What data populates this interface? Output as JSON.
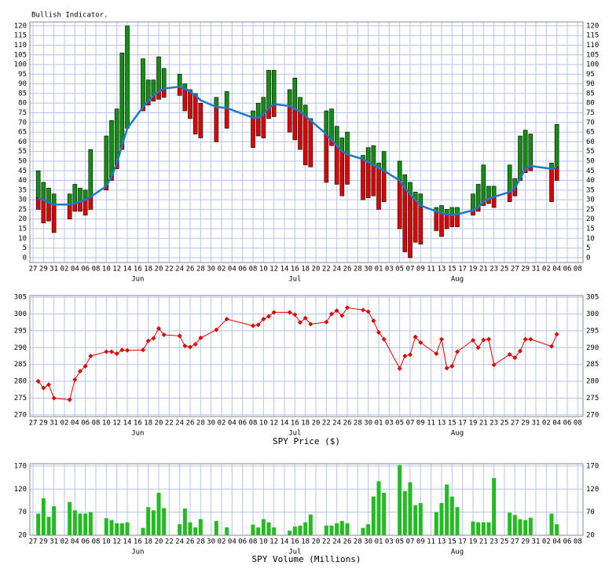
{
  "chart_data": [
    {
      "type": "bullish",
      "title": "Bullish Indicator.",
      "x": [
        1,
        2,
        3,
        4,
        7,
        8,
        9,
        10,
        11,
        14,
        15,
        16,
        17,
        18,
        21,
        22,
        23,
        24,
        25,
        28,
        29,
        30,
        31,
        32,
        35,
        37,
        42,
        43,
        44,
        45,
        46,
        49,
        50,
        51,
        52,
        53,
        56,
        57,
        58,
        59,
        60,
        63,
        64,
        65,
        66,
        67,
        70,
        71,
        72,
        73,
        74,
        77,
        78,
        79,
        80,
        81,
        84,
        85,
        86,
        87,
        88,
        91,
        92,
        93,
        94,
        95,
        99,
        100
      ],
      "low": [
        25,
        18,
        19,
        13,
        20,
        24,
        24,
        22,
        25,
        35,
        40,
        46,
        56,
        67,
        76,
        79,
        81,
        82,
        83,
        84,
        76,
        72,
        64,
        62,
        60,
        67,
        57,
        63,
        62,
        72,
        73,
        65,
        61,
        56,
        48,
        47,
        39,
        58,
        38,
        32,
        38,
        30,
        31,
        32,
        25,
        29,
        15,
        3,
        0,
        8,
        7,
        14,
        11,
        15,
        16,
        16,
        22,
        24,
        27,
        28,
        26,
        29,
        32,
        40,
        44,
        45,
        29,
        40
      ],
      "high": [
        45,
        39,
        36,
        33,
        33,
        38,
        36,
        35,
        56,
        63,
        71,
        77,
        106,
        120,
        103,
        92,
        92,
        104,
        98,
        95,
        90,
        87,
        85,
        80,
        83,
        86,
        76,
        80,
        83,
        97,
        97,
        87,
        93,
        83,
        79,
        72,
        76,
        77,
        68,
        62,
        65,
        53,
        57,
        58,
        49,
        55,
        50,
        43,
        39,
        34,
        33,
        26,
        27,
        25,
        26,
        26,
        33,
        38,
        48,
        37,
        37,
        48,
        41,
        63,
        66,
        64,
        49,
        69
      ],
      "average": [
        31,
        30,
        28.5,
        27.5,
        27.5,
        28,
        29,
        30,
        31.5,
        37,
        42,
        49,
        58,
        67,
        78,
        81,
        84,
        86,
        87.5,
        88.5,
        87.5,
        86,
        84,
        81.5,
        78,
        77.5,
        72.5,
        72.5,
        74,
        77.5,
        79.5,
        78.5,
        77,
        75.5,
        73.5,
        71,
        64,
        61,
        58,
        55,
        53.5,
        51,
        49.5,
        48,
        46.5,
        45,
        40,
        36,
        33,
        30,
        27,
        24,
        23,
        22.5,
        22,
        22.5,
        24.5,
        26,
        29,
        30.5,
        31.5,
        34,
        36,
        41,
        46,
        47.5,
        46,
        47
      ],
      "up_color": "#109010",
      "down_color": "#e00000",
      "line_color": "#1f78c8",
      "xlim": [
        -0.6,
        105
      ],
      "xticks": [
        {
          "value": 0,
          "label": "27"
        },
        {
          "value": 2,
          "label": "29"
        },
        {
          "value": 4,
          "label": "31"
        },
        {
          "value": 6,
          "label": "02"
        },
        {
          "value": 8,
          "label": "04"
        },
        {
          "value": 10,
          "label": "06"
        },
        {
          "value": 12,
          "label": "08"
        },
        {
          "value": 14,
          "label": "10"
        },
        {
          "value": 16,
          "label": "12"
        },
        {
          "value": 18,
          "label": "14"
        },
        {
          "value": 20,
          "label": "16"
        },
        {
          "value": 22,
          "label": "18"
        },
        {
          "value": 24,
          "label": "20"
        },
        {
          "value": 26,
          "label": "22"
        },
        {
          "value": 28,
          "label": "24"
        },
        {
          "value": 30,
          "label": "26"
        },
        {
          "value": 32,
          "label": "28"
        },
        {
          "value": 34,
          "label": "30"
        },
        {
          "value": 36,
          "label": "02"
        },
        {
          "value": 38,
          "label": "04"
        },
        {
          "value": 40,
          "label": "06"
        },
        {
          "value": 42,
          "label": "08"
        },
        {
          "value": 44,
          "label": "10"
        },
        {
          "value": 46,
          "label": "12"
        },
        {
          "value": 48,
          "label": "14"
        },
        {
          "value": 50,
          "label": "16"
        },
        {
          "value": 52,
          "label": "18"
        },
        {
          "value": 54,
          "label": "20"
        },
        {
          "value": 56,
          "label": "22"
        },
        {
          "value": 58,
          "label": "24"
        },
        {
          "value": 60,
          "label": "26"
        },
        {
          "value": 62,
          "label": "28"
        },
        {
          "value": 64,
          "label": "30"
        },
        {
          "value": 66,
          "label": "01"
        },
        {
          "value": 68,
          "label": "03"
        },
        {
          "value": 70,
          "label": "05"
        },
        {
          "value": 72,
          "label": "07"
        },
        {
          "value": 74,
          "label": "09"
        },
        {
          "value": 76,
          "label": "11"
        },
        {
          "value": 78,
          "label": "13"
        },
        {
          "value": 80,
          "label": "15"
        },
        {
          "value": 82,
          "label": "17"
        },
        {
          "value": 84,
          "label": "19"
        },
        {
          "value": 86,
          "label": "21"
        },
        {
          "value": 88,
          "label": "23"
        },
        {
          "value": 90,
          "label": "25"
        },
        {
          "value": 92,
          "label": "27"
        },
        {
          "value": 94,
          "label": "29"
        },
        {
          "value": 96,
          "label": "31"
        },
        {
          "value": 98,
          "label": "02"
        },
        {
          "value": 100,
          "label": "04"
        },
        {
          "value": 102,
          "label": "06"
        },
        {
          "value": 104,
          "label": "08"
        }
      ],
      "months": [
        {
          "value": 20,
          "label": "Jun"
        },
        {
          "value": 50,
          "label": "Jul"
        },
        {
          "value": 81,
          "label": "Aug"
        }
      ],
      "ylim": [
        -2.5,
        122
      ],
      "yticks": [
        0,
        5,
        10,
        15,
        20,
        25,
        30,
        35,
        40,
        45,
        50,
        55,
        60,
        65,
        70,
        75,
        80,
        85,
        90,
        95,
        100,
        105,
        110,
        115,
        120
      ],
      "grid": true
    },
    {
      "type": "line",
      "title": "SPY Price ($)",
      "x": [
        1,
        2,
        3,
        4,
        7,
        8,
        9,
        10,
        11,
        14,
        15,
        16,
        17,
        18,
        21,
        22,
        23,
        24,
        25,
        28,
        29,
        30,
        31,
        32,
        35,
        37,
        42,
        43,
        44,
        45,
        46,
        49,
        50,
        51,
        52,
        53,
        56,
        57,
        58,
        59,
        60,
        63,
        64,
        65,
        66,
        67,
        70,
        71,
        72,
        73,
        74,
        77,
        78,
        79,
        80,
        81,
        84,
        85,
        86,
        87,
        88,
        91,
        92,
        93,
        94,
        95,
        99,
        100
      ],
      "values": [
        280,
        278,
        279,
        275,
        274.5,
        280.5,
        283,
        284.5,
        287.5,
        288.8,
        288.8,
        288.2,
        289.3,
        289.2,
        289.3,
        292,
        292.8,
        295.7,
        293.8,
        293.5,
        290.5,
        290.2,
        291,
        292.9,
        295.3,
        298.5,
        296.5,
        296.8,
        298.5,
        299.3,
        300.5,
        300.5,
        299.8,
        297.5,
        298.8,
        297,
        297.6,
        300,
        301,
        299.5,
        301.9,
        301.2,
        300.7,
        298,
        294.5,
        292.5,
        283.8,
        287.5,
        287.9,
        293.2,
        291.5,
        288.2,
        292.5,
        283.9,
        284.5,
        288.8,
        292.2,
        290,
        292.3,
        292.5,
        284.9,
        288,
        287,
        289,
        292.5,
        292.5,
        290.4,
        294
      ],
      "color": "#e00000",
      "xlim": [
        -0.6,
        105
      ],
      "xticks": [
        {
          "value": 0,
          "label": "27"
        },
        {
          "value": 2,
          "label": "29"
        },
        {
          "value": 4,
          "label": "31"
        },
        {
          "value": 6,
          "label": "02"
        },
        {
          "value": 8,
          "label": "04"
        },
        {
          "value": 10,
          "label": "06"
        },
        {
          "value": 12,
          "label": "08"
        },
        {
          "value": 14,
          "label": "10"
        },
        {
          "value": 16,
          "label": "12"
        },
        {
          "value": 18,
          "label": "14"
        },
        {
          "value": 20,
          "label": "16"
        },
        {
          "value": 22,
          "label": "18"
        },
        {
          "value": 24,
          "label": "20"
        },
        {
          "value": 26,
          "label": "22"
        },
        {
          "value": 28,
          "label": "24"
        },
        {
          "value": 30,
          "label": "26"
        },
        {
          "value": 32,
          "label": "28"
        },
        {
          "value": 34,
          "label": "30"
        },
        {
          "value": 36,
          "label": "02"
        },
        {
          "value": 38,
          "label": "04"
        },
        {
          "value": 40,
          "label": "06"
        },
        {
          "value": 42,
          "label": "08"
        },
        {
          "value": 44,
          "label": "10"
        },
        {
          "value": 46,
          "label": "12"
        },
        {
          "value": 48,
          "label": "14"
        },
        {
          "value": 50,
          "label": "16"
        },
        {
          "value": 52,
          "label": "18"
        },
        {
          "value": 54,
          "label": "20"
        },
        {
          "value": 56,
          "label": "22"
        },
        {
          "value": 58,
          "label": "24"
        },
        {
          "value": 60,
          "label": "26"
        },
        {
          "value": 62,
          "label": "28"
        },
        {
          "value": 64,
          "label": "30"
        },
        {
          "value": 66,
          "label": "01"
        },
        {
          "value": 68,
          "label": "03"
        },
        {
          "value": 70,
          "label": "05"
        },
        {
          "value": 72,
          "label": "07"
        },
        {
          "value": 74,
          "label": "09"
        },
        {
          "value": 76,
          "label": "11"
        },
        {
          "value": 78,
          "label": "13"
        },
        {
          "value": 80,
          "label": "15"
        },
        {
          "value": 82,
          "label": "17"
        },
        {
          "value": 84,
          "label": "19"
        },
        {
          "value": 86,
          "label": "21"
        },
        {
          "value": 88,
          "label": "23"
        },
        {
          "value": 90,
          "label": "25"
        },
        {
          "value": 92,
          "label": "27"
        },
        {
          "value": 94,
          "label": "29"
        },
        {
          "value": 96,
          "label": "31"
        },
        {
          "value": 98,
          "label": "02"
        },
        {
          "value": 100,
          "label": "04"
        },
        {
          "value": 102,
          "label": "06"
        },
        {
          "value": 104,
          "label": "08"
        }
      ],
      "months": [
        {
          "value": 20,
          "label": "Jun"
        },
        {
          "value": 50,
          "label": "Jul"
        },
        {
          "value": 81,
          "label": "Aug"
        }
      ],
      "ylim": [
        269.5,
        305.5
      ],
      "yticks": [
        270,
        275,
        280,
        285,
        290,
        295,
        300,
        305
      ],
      "grid": true
    },
    {
      "type": "bar",
      "title": "SPY Volume (Millions)",
      "x": [
        1,
        2,
        3,
        4,
        7,
        8,
        9,
        10,
        11,
        14,
        15,
        16,
        17,
        18,
        21,
        22,
        23,
        24,
        25,
        28,
        29,
        30,
        31,
        32,
        35,
        37,
        42,
        43,
        44,
        45,
        46,
        49,
        50,
        51,
        52,
        53,
        56,
        57,
        58,
        59,
        60,
        63,
        64,
        65,
        66,
        67,
        70,
        71,
        72,
        73,
        74,
        77,
        78,
        79,
        80,
        81,
        84,
        85,
        86,
        87,
        88,
        91,
        92,
        93,
        94,
        95,
        99,
        100
      ],
      "values": [
        67,
        100,
        60,
        83,
        92,
        74,
        67,
        67,
        70,
        57,
        53,
        46,
        46,
        48,
        36,
        81,
        74,
        112,
        79,
        44,
        78,
        48,
        37,
        55,
        51,
        37,
        43,
        37,
        55,
        48,
        37,
        30,
        39,
        41,
        48,
        65,
        41,
        41,
        46,
        51,
        46,
        36,
        44,
        104,
        137,
        112,
        172,
        116,
        135,
        85,
        90,
        70,
        90,
        130,
        104,
        81,
        50,
        48,
        48,
        48,
        144,
        69,
        64,
        55,
        53,
        58,
        67,
        44
      ],
      "color": "#22bb22",
      "xlim": [
        -0.6,
        105
      ],
      "xticks": [
        {
          "value": 0,
          "label": "27"
        },
        {
          "value": 2,
          "label": "29"
        },
        {
          "value": 4,
          "label": "31"
        },
        {
          "value": 6,
          "label": "02"
        },
        {
          "value": 8,
          "label": "04"
        },
        {
          "value": 10,
          "label": "06"
        },
        {
          "value": 12,
          "label": "08"
        },
        {
          "value": 14,
          "label": "10"
        },
        {
          "value": 16,
          "label": "12"
        },
        {
          "value": 18,
          "label": "14"
        },
        {
          "value": 20,
          "label": "16"
        },
        {
          "value": 22,
          "label": "18"
        },
        {
          "value": 24,
          "label": "20"
        },
        {
          "value": 26,
          "label": "22"
        },
        {
          "value": 28,
          "label": "24"
        },
        {
          "value": 30,
          "label": "26"
        },
        {
          "value": 32,
          "label": "28"
        },
        {
          "value": 34,
          "label": "30"
        },
        {
          "value": 36,
          "label": "02"
        },
        {
          "value": 38,
          "label": "04"
        },
        {
          "value": 40,
          "label": "06"
        },
        {
          "value": 42,
          "label": "08"
        },
        {
          "value": 44,
          "label": "10"
        },
        {
          "value": 46,
          "label": "12"
        },
        {
          "value": 48,
          "label": "14"
        },
        {
          "value": 50,
          "label": "16"
        },
        {
          "value": 52,
          "label": "18"
        },
        {
          "value": 54,
          "label": "20"
        },
        {
          "value": 56,
          "label": "22"
        },
        {
          "value": 58,
          "label": "24"
        },
        {
          "value": 60,
          "label": "26"
        },
        {
          "value": 62,
          "label": "28"
        },
        {
          "value": 64,
          "label": "30"
        },
        {
          "value": 66,
          "label": "01"
        },
        {
          "value": 68,
          "label": "03"
        },
        {
          "value": 70,
          "label": "05"
        },
        {
          "value": 72,
          "label": "07"
        },
        {
          "value": 74,
          "label": "09"
        },
        {
          "value": 76,
          "label": "11"
        },
        {
          "value": 78,
          "label": "13"
        },
        {
          "value": 80,
          "label": "15"
        },
        {
          "value": 82,
          "label": "17"
        },
        {
          "value": 84,
          "label": "19"
        },
        {
          "value": 86,
          "label": "21"
        },
        {
          "value": 88,
          "label": "23"
        },
        {
          "value": 90,
          "label": "25"
        },
        {
          "value": 92,
          "label": "27"
        },
        {
          "value": 94,
          "label": "29"
        },
        {
          "value": 96,
          "label": "31"
        },
        {
          "value": 98,
          "label": "02"
        },
        {
          "value": 100,
          "label": "04"
        },
        {
          "value": 102,
          "label": "06"
        },
        {
          "value": 104,
          "label": "08"
        }
      ],
      "months": [
        {
          "value": 20,
          "label": "Jun"
        },
        {
          "value": 50,
          "label": "Jul"
        },
        {
          "value": 81,
          "label": "Aug"
        }
      ],
      "ylim": [
        20,
        175
      ],
      "yticks": [
        20,
        70,
        120,
        170
      ],
      "grid": true
    }
  ]
}
